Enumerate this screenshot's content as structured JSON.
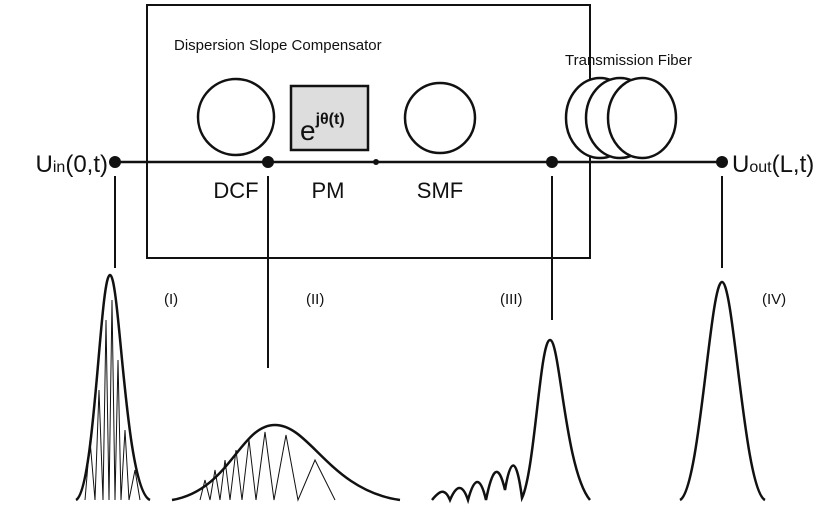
{
  "box_title": "Dispersion Slope Compensator",
  "fiber_title": "Transmission Fiber",
  "input": {
    "main": "U",
    "sub": "in",
    "rest": "(0,t)"
  },
  "output": {
    "main": "U",
    "sub": "out",
    "rest": "(L,t)"
  },
  "components": {
    "dcf": "DCF",
    "pm": "PM",
    "smf": "SMF",
    "phase_base": "e",
    "phase_exp": "jθ(t)"
  },
  "pulses": [
    "(I)",
    "(II)",
    "(III)",
    "(IV)"
  ]
}
